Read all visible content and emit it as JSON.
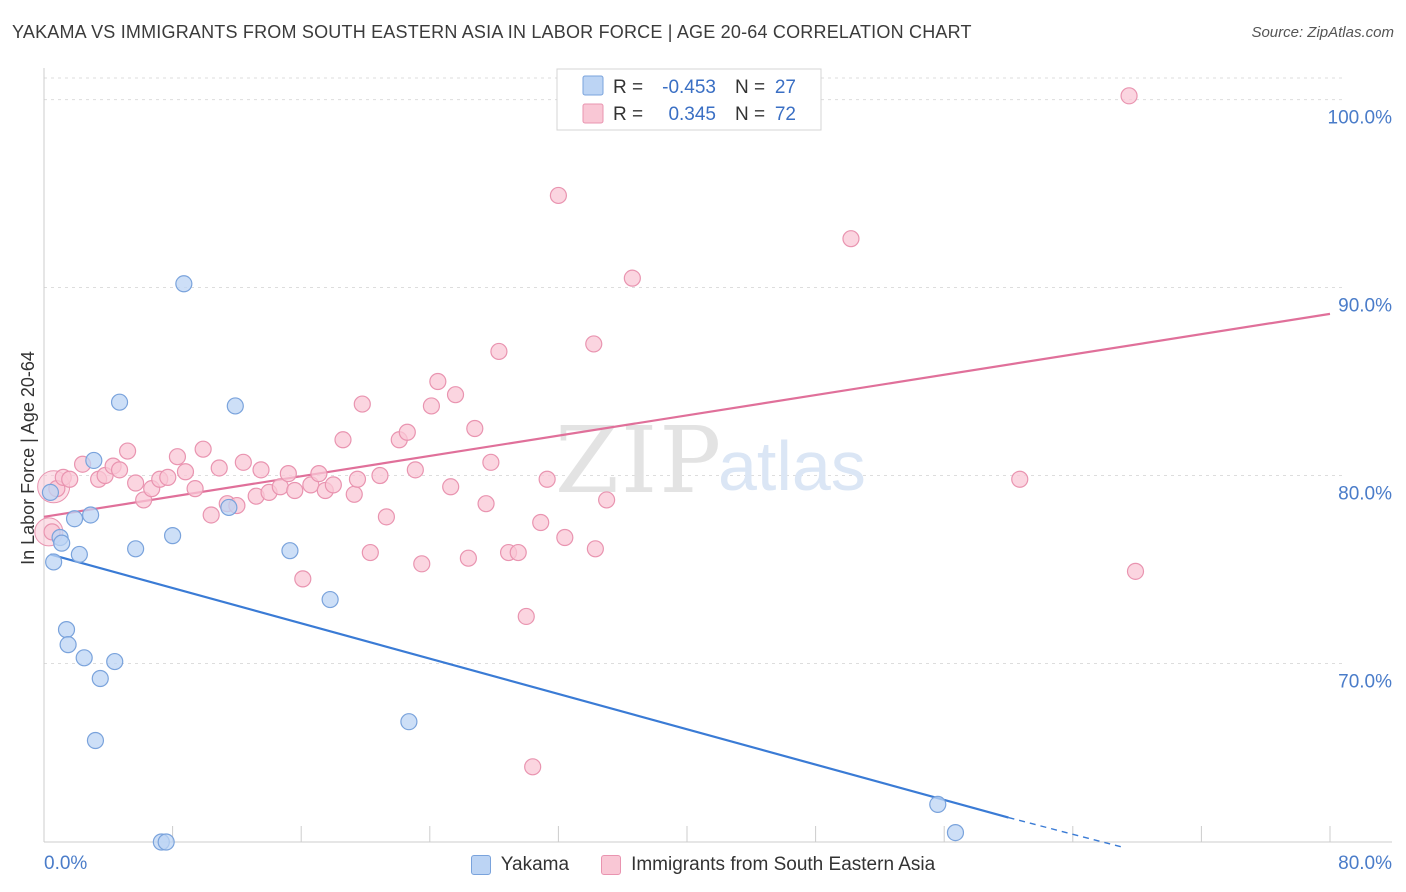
{
  "header": {
    "title": "YAKAMA VS IMMIGRANTS FROM SOUTH EASTERN ASIA IN LABOR FORCE | AGE 20-64 CORRELATION CHART",
    "source": "Source: ZipAtlas.com"
  },
  "watermark": {
    "zip": "ZIP",
    "atlas": "atlas"
  },
  "colors": {
    "blue_fill": "#bcd4f4",
    "blue_stroke": "#7aa3dc",
    "blue_line": "#3a7bd5",
    "pink_fill": "#f9c7d5",
    "pink_stroke": "#e994b0",
    "pink_line": "#e0709a",
    "axis_text": "#4a7cc9",
    "grid": "#dddddd"
  },
  "stats_legend": {
    "row1": {
      "r_label": "R =",
      "r_value": "-0.453",
      "n_label": "N =",
      "n_value": "27"
    },
    "row2": {
      "r_label": "R =",
      "r_value": "0.345",
      "n_label": "N =",
      "n_value": "72"
    }
  },
  "chart_data": {
    "type": "scatter",
    "xlabel": "",
    "ylabel": "In Labor Force | Age 20-64",
    "xlim": [
      0,
      80
    ],
    "ylim": [
      60.5,
      102
    ],
    "x_tick_labels": [
      "0.0%",
      "80.0%"
    ],
    "y_ticks": [
      70,
      80,
      90,
      100
    ],
    "y_tick_labels": [
      "70.0%",
      "80.0%",
      "90.0%",
      "100.0%"
    ],
    "grid": true,
    "series": [
      {
        "name": "Yakama",
        "color": "blue",
        "points": [
          [
            0.4,
            79.1
          ],
          [
            0.6,
            75.4
          ],
          [
            1.0,
            76.7
          ],
          [
            1.1,
            76.4
          ],
          [
            1.4,
            71.8
          ],
          [
            1.5,
            71.0
          ],
          [
            1.9,
            77.7
          ],
          [
            2.2,
            75.8
          ],
          [
            2.5,
            70.3
          ],
          [
            2.9,
            77.9
          ],
          [
            3.1,
            80.8
          ],
          [
            3.2,
            65.9
          ],
          [
            3.5,
            69.2
          ],
          [
            4.4,
            70.1
          ],
          [
            4.7,
            83.9
          ],
          [
            5.7,
            76.1
          ],
          [
            7.3,
            60.5
          ],
          [
            7.6,
            60.5
          ],
          [
            8.0,
            76.8
          ],
          [
            8.7,
            90.2
          ],
          [
            11.5,
            78.3
          ],
          [
            11.9,
            83.7
          ],
          [
            15.3,
            76.0
          ],
          [
            17.8,
            73.4
          ],
          [
            22.7,
            66.9
          ],
          [
            55.6,
            62.5
          ],
          [
            56.7,
            61.0
          ]
        ],
        "trend": {
          "x0": 0.4,
          "y0": 75.8,
          "x1": 60.0,
          "y1": 61.8,
          "dash_x1": 67.2,
          "dash_y1": 60.2
        }
      },
      {
        "name": "Immigrants from South Eastern Asia",
        "color": "pink",
        "points": [
          [
            0.5,
            77.0
          ],
          [
            0.8,
            79.3
          ],
          [
            1.2,
            79.9
          ],
          [
            1.6,
            79.8
          ],
          [
            2.4,
            80.6
          ],
          [
            3.4,
            79.8
          ],
          [
            3.8,
            80.0
          ],
          [
            4.3,
            80.5
          ],
          [
            4.7,
            80.3
          ],
          [
            5.2,
            81.3
          ],
          [
            5.7,
            79.6
          ],
          [
            6.2,
            78.7
          ],
          [
            6.7,
            79.3
          ],
          [
            7.2,
            79.8
          ],
          [
            7.7,
            79.9
          ],
          [
            8.3,
            81.0
          ],
          [
            8.8,
            80.2
          ],
          [
            9.4,
            79.3
          ],
          [
            9.9,
            81.4
          ],
          [
            10.4,
            77.9
          ],
          [
            10.9,
            80.4
          ],
          [
            11.4,
            78.5
          ],
          [
            12.0,
            78.4
          ],
          [
            12.4,
            80.7
          ],
          [
            13.2,
            78.9
          ],
          [
            13.5,
            80.3
          ],
          [
            14.0,
            79.1
          ],
          [
            14.7,
            79.4
          ],
          [
            15.2,
            80.1
          ],
          [
            15.6,
            79.2
          ],
          [
            16.1,
            74.5
          ],
          [
            16.6,
            79.5
          ],
          [
            17.1,
            80.1
          ],
          [
            17.5,
            79.2
          ],
          [
            18.0,
            79.5
          ],
          [
            18.6,
            81.9
          ],
          [
            19.3,
            79.0
          ],
          [
            19.5,
            79.8
          ],
          [
            19.8,
            83.8
          ],
          [
            20.3,
            75.9
          ],
          [
            20.9,
            80.0
          ],
          [
            21.3,
            77.8
          ],
          [
            22.1,
            81.9
          ],
          [
            22.6,
            82.3
          ],
          [
            23.1,
            80.3
          ],
          [
            23.5,
            75.3
          ],
          [
            24.1,
            83.7
          ],
          [
            24.5,
            85.0
          ],
          [
            25.3,
            79.4
          ],
          [
            25.6,
            84.3
          ],
          [
            26.4,
            75.6
          ],
          [
            26.8,
            82.5
          ],
          [
            27.5,
            78.5
          ],
          [
            27.8,
            80.7
          ],
          [
            28.3,
            86.6
          ],
          [
            28.9,
            75.9
          ],
          [
            29.5,
            75.9
          ],
          [
            30.0,
            72.5
          ],
          [
            30.4,
            64.5
          ],
          [
            30.9,
            77.5
          ],
          [
            31.3,
            79.8
          ],
          [
            32.0,
            94.9
          ],
          [
            32.4,
            76.7
          ],
          [
            34.2,
            87.0
          ],
          [
            34.3,
            76.1
          ],
          [
            35.0,
            78.7
          ],
          [
            36.6,
            90.5
          ],
          [
            43.2,
            100.0
          ],
          [
            50.2,
            92.6
          ],
          [
            60.7,
            79.8
          ],
          [
            67.5,
            100.2
          ],
          [
            67.9,
            74.9
          ]
        ],
        "trend": {
          "x0": 0.0,
          "y0": 77.8,
          "x1": 80.0,
          "y1": 88.6
        }
      }
    ]
  }
}
